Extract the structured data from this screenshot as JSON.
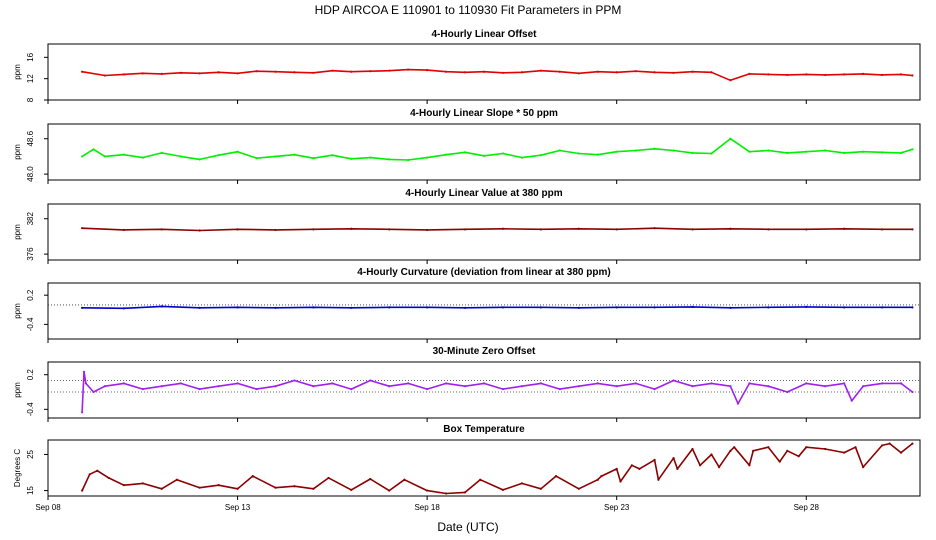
{
  "figure": {
    "title": "HDP    AIRCOA E    110901 to 110930    Fit Parameters in PPM",
    "xlabel": "Date (UTC)",
    "x_ticks": [
      "Sep 08",
      "Sep 13",
      "Sep 18",
      "Sep 23",
      "Sep 28"
    ]
  },
  "chart_data": [
    {
      "type": "line",
      "title": "4-Hourly Linear Offset",
      "ylabel": "ppm",
      "color": "#e00000",
      "yticks": [
        8,
        12,
        16
      ],
      "yticklabels": [
        "8",
        "12",
        "16"
      ],
      "ylim": [
        8,
        18.5
      ],
      "xlim": [
        8.0,
        31.0
      ],
      "x": [
        8.9,
        9.5,
        10.0,
        10.5,
        11.0,
        11.5,
        12.0,
        12.5,
        13.0,
        13.5,
        14.0,
        14.5,
        15.0,
        15.5,
        16.0,
        16.5,
        17.0,
        17.5,
        18.0,
        18.5,
        19.0,
        19.5,
        20.0,
        20.5,
        21.0,
        21.5,
        22.0,
        22.5,
        23.0,
        23.5,
        24.0,
        24.5,
        25.0,
        25.5,
        26.0,
        26.5,
        27.0,
        27.5,
        28.0,
        28.5,
        29.0,
        29.5,
        30.0,
        30.5,
        30.8
      ],
      "values": [
        13.3,
        12.6,
        12.8,
        13.0,
        12.9,
        13.1,
        13.0,
        13.2,
        13.0,
        13.4,
        13.3,
        13.2,
        13.1,
        13.5,
        13.3,
        13.4,
        13.5,
        13.7,
        13.6,
        13.3,
        13.2,
        13.3,
        13.1,
        13.2,
        13.5,
        13.3,
        13.0,
        13.3,
        13.2,
        13.4,
        13.2,
        13.1,
        13.3,
        13.2,
        11.7,
        12.9,
        12.8,
        12.7,
        12.8,
        12.7,
        12.8,
        12.9,
        12.7,
        12.8,
        12.6
      ]
    },
    {
      "type": "line",
      "title": "4-Hourly Linear Slope * 50 ppm",
      "ylabel": "ppm",
      "color": "#00ee00",
      "yticks": [
        48.0,
        48.6
      ],
      "yticklabels": [
        "48.0",
        "48.6"
      ],
      "ylim": [
        47.9,
        48.85
      ],
      "xlim": [
        8.0,
        31.0
      ],
      "x": [
        8.9,
        9.2,
        9.5,
        10.0,
        10.5,
        11.0,
        11.5,
        12.0,
        12.5,
        13.0,
        13.5,
        14.0,
        14.5,
        15.0,
        15.5,
        16.0,
        16.5,
        17.0,
        17.5,
        18.0,
        18.5,
        19.0,
        19.5,
        20.0,
        20.5,
        21.0,
        21.5,
        22.0,
        22.5,
        23.0,
        23.5,
        24.0,
        24.5,
        25.0,
        25.5,
        26.0,
        26.5,
        27.0,
        27.5,
        28.0,
        28.5,
        29.0,
        29.5,
        30.0,
        30.5,
        30.8
      ],
      "values": [
        48.3,
        48.42,
        48.3,
        48.33,
        48.28,
        48.36,
        48.3,
        48.25,
        48.32,
        48.38,
        48.27,
        48.3,
        48.33,
        48.27,
        48.32,
        48.26,
        48.28,
        48.25,
        48.24,
        48.28,
        48.33,
        48.37,
        48.31,
        48.35,
        48.28,
        48.32,
        48.4,
        48.35,
        48.33,
        48.38,
        48.4,
        48.43,
        48.4,
        48.36,
        48.35,
        48.6,
        48.38,
        48.4,
        48.36,
        48.38,
        48.4,
        48.36,
        48.38,
        48.37,
        48.36,
        48.42
      ]
    },
    {
      "type": "line",
      "title": "4-Hourly Linear Value at 380 ppm",
      "ylabel": "ppm",
      "color": "#8b0000",
      "yticks": [
        376,
        382
      ],
      "yticklabels": [
        "376",
        "382"
      ],
      "ylim": [
        375,
        384.5
      ],
      "xlim": [
        8.0,
        31.0
      ],
      "x": [
        8.9,
        10.0,
        11.0,
        12.0,
        13.0,
        14.0,
        15.0,
        16.0,
        17.0,
        18.0,
        19.0,
        20.0,
        21.0,
        22.0,
        23.0,
        24.0,
        25.0,
        26.0,
        27.0,
        28.0,
        29.0,
        30.0,
        30.8
      ],
      "values": [
        380.4,
        380.1,
        380.2,
        380.0,
        380.2,
        380.1,
        380.2,
        380.3,
        380.2,
        380.1,
        380.2,
        380.3,
        380.2,
        380.3,
        380.2,
        380.4,
        380.2,
        380.3,
        380.2,
        380.2,
        380.3,
        380.2,
        380.2
      ]
    },
    {
      "type": "line",
      "title": "4-Hourly Curvature (deviation from linear at 380 ppm)",
      "ylabel": "ppm",
      "color": "#0000cc",
      "yticks": [
        -0.4,
        0.2
      ],
      "yticklabels": [
        "-0.4",
        "0.2"
      ],
      "ylim": [
        -0.7,
        0.45
      ],
      "xlim": [
        8.0,
        31.0
      ],
      "reference_line": 0.0,
      "x": [
        8.9,
        10.0,
        11.0,
        12.0,
        13.0,
        14.0,
        15.0,
        16.0,
        17.0,
        18.0,
        19.0,
        20.0,
        21.0,
        22.0,
        23.0,
        24.0,
        25.0,
        26.0,
        27.0,
        28.0,
        29.0,
        30.0,
        30.8
      ],
      "values": [
        -0.06,
        -0.07,
        -0.03,
        -0.06,
        -0.05,
        -0.06,
        -0.05,
        -0.06,
        -0.05,
        -0.05,
        -0.06,
        -0.05,
        -0.05,
        -0.06,
        -0.05,
        -0.05,
        -0.04,
        -0.06,
        -0.05,
        -0.04,
        -0.05,
        -0.05,
        -0.05
      ]
    },
    {
      "type": "line",
      "title": "30-Minute Zero Offset",
      "ylabel": "ppm",
      "color": "#a020f0",
      "yticks": [
        -0.4,
        0.2
      ],
      "yticklabels": [
        "-0.4",
        "0.2"
      ],
      "ylim": [
        -0.55,
        0.42
      ],
      "xlim": [
        8.0,
        31.0
      ],
      "reference_lines": [
        0.1,
        -0.1
      ],
      "x": [
        8.9,
        8.95,
        9.0,
        9.2,
        9.5,
        10.0,
        10.5,
        11.0,
        11.5,
        12.0,
        12.5,
        13.0,
        13.5,
        14.0,
        14.5,
        15.0,
        15.5,
        16.0,
        16.5,
        17.0,
        17.5,
        18.0,
        18.5,
        19.0,
        19.5,
        20.0,
        20.5,
        21.0,
        21.5,
        22.0,
        22.5,
        23.0,
        23.5,
        24.0,
        24.5,
        25.0,
        25.5,
        26.0,
        26.2,
        26.5,
        27.0,
        27.5,
        28.0,
        28.5,
        29.0,
        29.2,
        29.5,
        30.0,
        30.5,
        30.8
      ],
      "values": [
        -0.45,
        0.25,
        0.05,
        -0.1,
        0.0,
        0.05,
        -0.05,
        0.0,
        0.05,
        -0.05,
        0.0,
        0.05,
        -0.05,
        0.0,
        0.1,
        0.0,
        0.05,
        -0.05,
        0.1,
        0.0,
        0.05,
        -0.05,
        0.05,
        0.0,
        0.05,
        -0.05,
        0.0,
        0.05,
        -0.05,
        0.0,
        0.05,
        0.0,
        0.05,
        -0.05,
        0.1,
        0.0,
        0.05,
        0.0,
        -0.3,
        0.05,
        0.0,
        -0.1,
        0.05,
        0.0,
        0.05,
        -0.25,
        0.0,
        0.05,
        0.05,
        -0.1
      ]
    },
    {
      "type": "line",
      "title": "Box Temperature",
      "ylabel": "Degrees C",
      "color": "#8b0000",
      "yticks": [
        15,
        25
      ],
      "yticklabels": [
        "15",
        "25"
      ],
      "ylim": [
        13.5,
        29
      ],
      "xlim": [
        8.0,
        31.0
      ],
      "x": [
        8.9,
        9.1,
        9.3,
        9.6,
        10.0,
        10.5,
        11.0,
        11.4,
        12.0,
        12.5,
        13.0,
        13.4,
        14.0,
        14.5,
        15.0,
        15.4,
        16.0,
        16.5,
        17.0,
        17.4,
        18.0,
        18.5,
        19.0,
        19.4,
        20.0,
        20.5,
        21.0,
        21.4,
        22.0,
        22.5,
        22.6,
        23.0,
        23.1,
        23.4,
        23.6,
        24.0,
        24.1,
        24.5,
        24.6,
        25.0,
        25.2,
        25.5,
        25.7,
        26.0,
        26.1,
        26.5,
        26.6,
        27.0,
        27.3,
        27.5,
        27.8,
        28.0,
        28.5,
        29.0,
        29.3,
        29.5,
        30.0,
        30.2,
        30.5,
        30.8
      ],
      "values": [
        15.0,
        19.5,
        20.5,
        18.5,
        16.5,
        17.0,
        15.5,
        18.0,
        15.8,
        16.5,
        15.5,
        19.0,
        15.8,
        16.2,
        15.5,
        18.5,
        15.2,
        18.2,
        15.0,
        18.0,
        15.0,
        14.2,
        14.5,
        18.0,
        15.2,
        17.0,
        15.5,
        19.0,
        15.5,
        18.0,
        19.0,
        21.0,
        17.5,
        22.0,
        21.0,
        23.5,
        18.0,
        24.0,
        21.0,
        26.5,
        22.0,
        25.0,
        21.5,
        26.0,
        27.0,
        22.0,
        26.0,
        27.0,
        23.0,
        26.0,
        24.5,
        27.0,
        26.5,
        25.5,
        27.0,
        21.5,
        27.5,
        28.0,
        25.5,
        28.0
      ]
    }
  ]
}
